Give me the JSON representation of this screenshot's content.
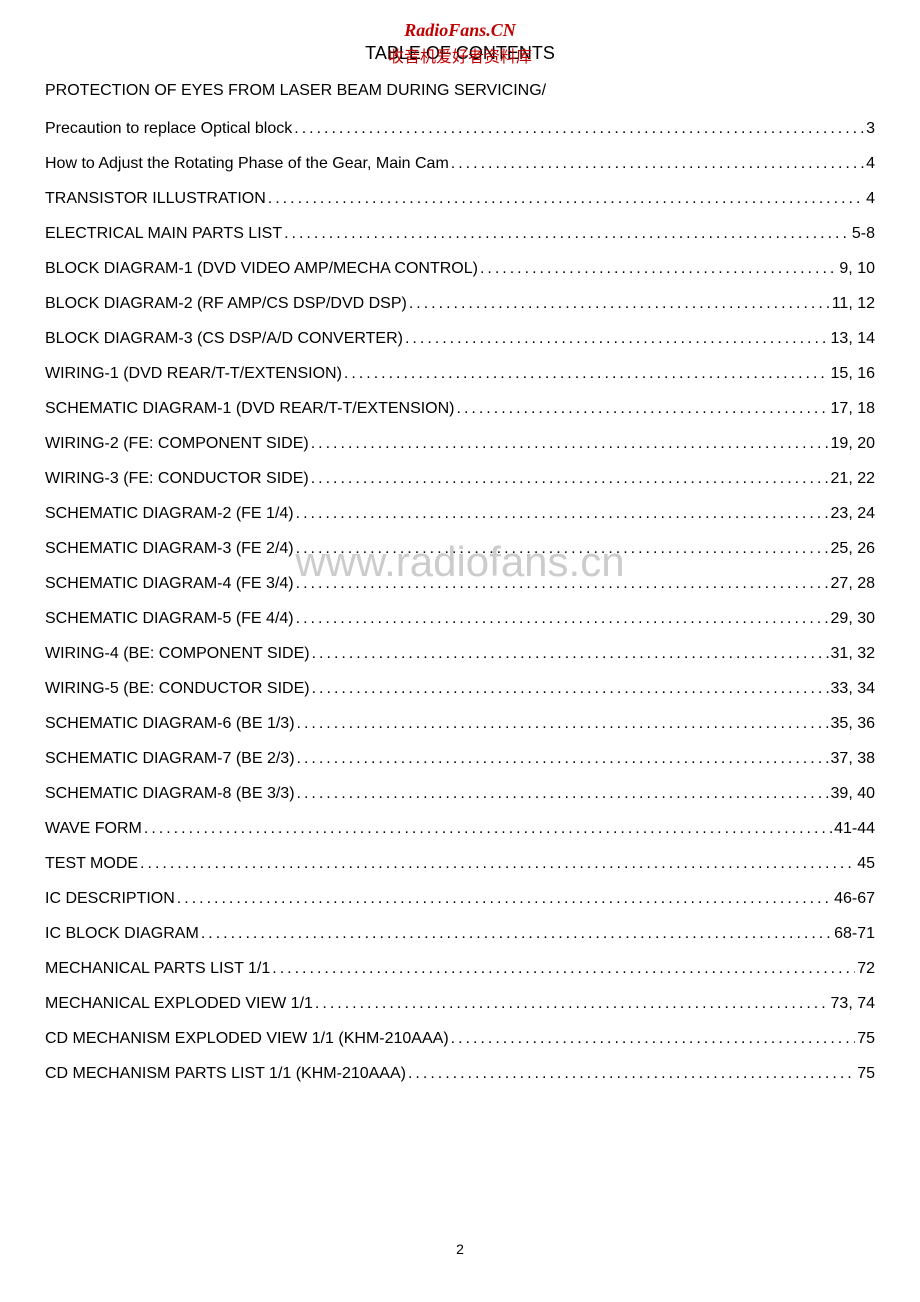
{
  "header": {
    "watermark_top": "RadioFans.CN",
    "title": "TABLE OF CONTENTS",
    "title_overlay": "收音机爱好者资料库"
  },
  "section_header": "PROTECTION OF EYES FROM LASER BEAM DURING SERVICING/",
  "toc_items": [
    {
      "label": "Precaution to replace Optical block",
      "page": "3"
    },
    {
      "label": "How to Adjust the Rotating Phase of the Gear, Main Cam ",
      "page": "4"
    },
    {
      "label": "TRANSISTOR ILLUSTRATION ",
      "page": "4"
    },
    {
      "label": "ELECTRICAL MAIN PARTS LIST ",
      "page": "5-8"
    },
    {
      "label": "BLOCK DIAGRAM-1 (DVD VIDEO AMP/MECHA CONTROL) ",
      "page": "9, 10"
    },
    {
      "label": "BLOCK DIAGRAM-2 (RF AMP/CS DSP/DVD DSP)",
      "page": "11, 12"
    },
    {
      "label": "BLOCK DIAGRAM-3 (CS DSP/A/D CONVERTER)",
      "page": "13, 14"
    },
    {
      "label": "WIRING-1 (DVD REAR/T-T/EXTENSION) ",
      "page": "15, 16"
    },
    {
      "label": "SCHEMATIC DIAGRAM-1 (DVD REAR/T-T/EXTENSION)",
      "page": "17, 18"
    },
    {
      "label": "WIRING-2 (FE: COMPONENT SIDE) ",
      "page": "19, 20"
    },
    {
      "label": "WIRING-3 (FE: CONDUCTOR SIDE) ",
      "page": "21, 22"
    },
    {
      "label": "SCHEMATIC DIAGRAM-2 (FE 1/4) ",
      "page": "23, 24"
    },
    {
      "label": "SCHEMATIC DIAGRAM-3 (FE 2/4) ",
      "page": "25, 26"
    },
    {
      "label": "SCHEMATIC DIAGRAM-4 (FE 3/4) ",
      "page": "27, 28"
    },
    {
      "label": "SCHEMATIC DIAGRAM-5 (FE 4/4) ",
      "page": "29, 30"
    },
    {
      "label": "WIRING-4 (BE: COMPONENT SIDE) ",
      "page": "31, 32"
    },
    {
      "label": "WIRING-5 (BE: CONDUCTOR SIDE) ",
      "page": "33, 34"
    },
    {
      "label": "SCHEMATIC DIAGRAM-6 (BE 1/3) ",
      "page": "35, 36"
    },
    {
      "label": "SCHEMATIC DIAGRAM-7 (BE 2/3) ",
      "page": "37, 38"
    },
    {
      "label": "SCHEMATIC DIAGRAM-8 (BE 3/3) ",
      "page": "39, 40"
    },
    {
      "label": "WAVE FORM ",
      "page": "41-44"
    },
    {
      "label": "TEST MODE ",
      "page": "45"
    },
    {
      "label": "IC DESCRIPTION ",
      "page": "46-67"
    },
    {
      "label": "IC BLOCK DIAGRAM",
      "page": "68-71"
    },
    {
      "label": "MECHANICAL PARTS LIST 1/1 ",
      "page": "72"
    },
    {
      "label": "MECHANICAL EXPLODED VIEW 1/1 ",
      "page": "73, 74"
    },
    {
      "label": "CD MECHANISM EXPLODED VIEW 1/1 (KHM-210AAA) ",
      "page": "75"
    },
    {
      "label": "CD MECHANISM PARTS LIST 1/1 (KHM-210AAA)",
      "page": "75"
    }
  ],
  "center_watermark": "www.radiofans.cn",
  "page_number": "2",
  "colors": {
    "background": "#ffffff",
    "text": "#000000",
    "watermark_red": "#c00000",
    "watermark_gray": "#cccccc"
  },
  "typography": {
    "body_fontsize": 16,
    "title_fontsize": 18,
    "watermark_top_fontsize": 18,
    "center_watermark_fontsize": 42,
    "page_number_fontsize": 14
  }
}
